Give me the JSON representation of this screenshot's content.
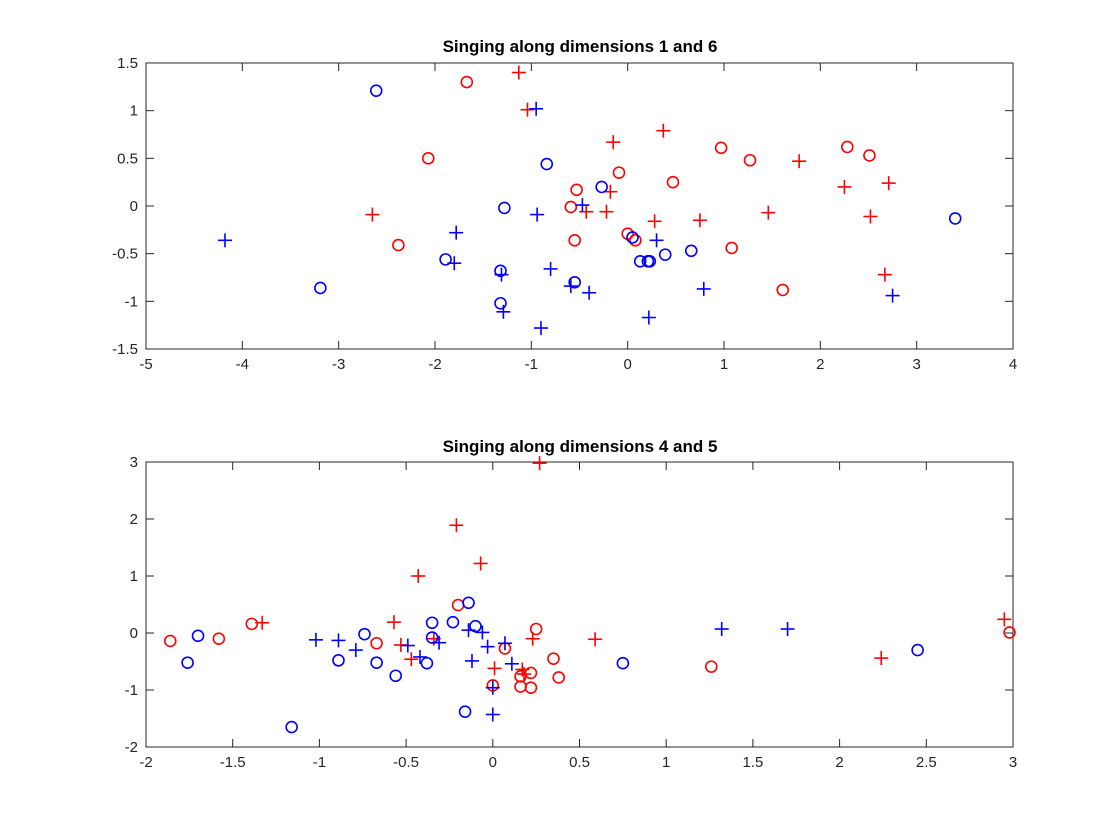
{
  "colors": {
    "series_a": "#ff0000",
    "series_b": "#0000ff",
    "axis": "#262626"
  },
  "chart_data": [
    {
      "type": "scatter",
      "title": "Singing along dimensions 1 and 6",
      "xlabel": "",
      "ylabel": "",
      "xlim": [
        -5,
        4
      ],
      "ylim": [
        -1.5,
        1.5
      ],
      "xticks": [
        -5,
        -4,
        -3,
        -2,
        -1,
        0,
        1,
        2,
        3,
        4
      ],
      "yticks": [
        -1.5,
        -1,
        -0.5,
        0,
        0.5,
        1,
        1.5
      ],
      "xtick_labels": [
        "-5",
        "-4",
        "-3",
        "-2",
        "-1",
        "0",
        "1",
        "2",
        "3",
        "4"
      ],
      "ytick_labels": [
        "-1.5",
        "-1",
        "-0.5",
        "0",
        "0.5",
        "1",
        "1.5"
      ],
      "grid": false,
      "series": [
        {
          "color": "#ff0000",
          "marker": "o",
          "points": [
            [
              -1.67,
              1.3
            ],
            [
              -2.07,
              0.5
            ],
            [
              -2.38,
              -0.41
            ],
            [
              -0.53,
              0.17
            ],
            [
              -0.09,
              0.35
            ],
            [
              -0.59,
              -0.01
            ],
            [
              -0.55,
              -0.36
            ],
            [
              0.0,
              -0.29
            ],
            [
              0.08,
              -0.36
            ],
            [
              0.47,
              0.25
            ],
            [
              0.97,
              0.61
            ],
            [
              1.27,
              0.48
            ],
            [
              2.28,
              0.62
            ],
            [
              2.51,
              0.53
            ],
            [
              1.08,
              -0.44
            ],
            [
              1.61,
              -0.88
            ]
          ]
        },
        {
          "color": "#ff0000",
          "marker": "+",
          "points": [
            [
              -1.13,
              1.4
            ],
            [
              -1.04,
              1.01
            ],
            [
              -0.15,
              0.67
            ],
            [
              0.37,
              0.79
            ],
            [
              -0.18,
              0.15
            ],
            [
              -0.43,
              -0.06
            ],
            [
              -0.22,
              -0.06
            ],
            [
              0.28,
              -0.16
            ],
            [
              0.75,
              -0.15
            ],
            [
              1.46,
              -0.07
            ],
            [
              1.78,
              0.47
            ],
            [
              2.25,
              0.2
            ],
            [
              2.71,
              0.24
            ],
            [
              2.52,
              -0.11
            ],
            [
              2.67,
              -0.72
            ],
            [
              -2.65,
              -0.09
            ]
          ]
        },
        {
          "color": "#0000ff",
          "marker": "o",
          "points": [
            [
              -2.61,
              1.21
            ],
            [
              -3.19,
              -0.86
            ],
            [
              -1.89,
              -0.56
            ],
            [
              -1.28,
              -0.02
            ],
            [
              -0.84,
              0.44
            ],
            [
              -1.32,
              -0.68
            ],
            [
              -1.32,
              -1.02
            ],
            [
              -0.55,
              -0.8
            ],
            [
              -0.27,
              0.2
            ],
            [
              0.05,
              -0.33
            ],
            [
              0.13,
              -0.58
            ],
            [
              0.23,
              -0.58
            ],
            [
              0.21,
              -0.58
            ],
            [
              0.39,
              -0.51
            ],
            [
              0.66,
              -0.47
            ],
            [
              3.4,
              -0.13
            ]
          ]
        },
        {
          "color": "#0000ff",
          "marker": "+",
          "points": [
            [
              -4.18,
              -0.36
            ],
            [
              -1.78,
              -0.28
            ],
            [
              -1.8,
              -0.6
            ],
            [
              -1.31,
              -0.72
            ],
            [
              -1.29,
              -1.11
            ],
            [
              -0.95,
              1.02
            ],
            [
              -0.94,
              -0.09
            ],
            [
              -0.8,
              -0.66
            ],
            [
              -0.9,
              -1.28
            ],
            [
              -0.59,
              -0.84
            ],
            [
              -0.4,
              -0.91
            ],
            [
              -0.47,
              0.01
            ],
            [
              0.3,
              -0.36
            ],
            [
              0.22,
              -1.17
            ],
            [
              0.79,
              -0.87
            ],
            [
              2.75,
              -0.94
            ]
          ]
        }
      ]
    },
    {
      "type": "scatter",
      "title": "Singing along dimensions 4 and 5",
      "xlabel": "",
      "ylabel": "",
      "xlim": [
        -2,
        3
      ],
      "ylim": [
        -2,
        3
      ],
      "xticks": [
        -2,
        -1.5,
        -1,
        -0.5,
        0,
        0.5,
        1,
        1.5,
        2,
        2.5,
        3
      ],
      "yticks": [
        -2,
        -1,
        0,
        1,
        2,
        3
      ],
      "xtick_labels": [
        "-2",
        "-1.5",
        "-1",
        "-0.5",
        "0",
        "0.5",
        "1",
        "1.5",
        "2",
        "2.5",
        "3"
      ],
      "ytick_labels": [
        "-2",
        "-1",
        "0",
        "1",
        "2",
        "3"
      ],
      "grid": false,
      "series": [
        {
          "color": "#ff0000",
          "marker": "o",
          "points": [
            [
              -1.86,
              -0.14
            ],
            [
              -1.58,
              -0.1
            ],
            [
              -1.39,
              0.16
            ],
            [
              -0.67,
              -0.18
            ],
            [
              -0.2,
              0.49
            ],
            [
              0.07,
              -0.27
            ],
            [
              0.25,
              0.07
            ],
            [
              0.35,
              -0.45
            ],
            [
              0.38,
              -0.78
            ],
            [
              0.22,
              -0.96
            ],
            [
              0.22,
              -0.7
            ],
            [
              0.16,
              -0.94
            ],
            [
              0.0,
              -0.92
            ],
            [
              1.26,
              -0.59
            ],
            [
              2.98,
              0.01
            ],
            [
              0.16,
              -0.76
            ]
          ]
        },
        {
          "color": "#ff0000",
          "marker": "+",
          "points": [
            [
              -1.33,
              0.18
            ],
            [
              -0.57,
              0.19
            ],
            [
              -0.53,
              -0.21
            ],
            [
              -0.47,
              -0.46
            ],
            [
              -0.43,
              1.0
            ],
            [
              -0.21,
              1.89
            ],
            [
              -0.07,
              1.22
            ],
            [
              0.27,
              2.98
            ],
            [
              0.23,
              -0.1
            ],
            [
              0.59,
              -0.11
            ],
            [
              0.01,
              -0.62
            ],
            [
              0.17,
              -0.64
            ],
            [
              2.24,
              -0.44
            ],
            [
              2.95,
              0.24
            ],
            [
              -0.34,
              -0.1
            ],
            [
              0.18,
              -0.72
            ]
          ]
        },
        {
          "color": "#0000ff",
          "marker": "o",
          "points": [
            [
              -1.76,
              -0.52
            ],
            [
              -1.7,
              -0.05
            ],
            [
              -1.16,
              -1.65
            ],
            [
              -0.89,
              -0.48
            ],
            [
              -0.74,
              -0.02
            ],
            [
              -0.67,
              -0.52
            ],
            [
              -0.56,
              -0.75
            ],
            [
              -0.38,
              -0.53
            ],
            [
              -0.35,
              0.18
            ],
            [
              -0.35,
              -0.08
            ],
            [
              -0.23,
              0.19
            ],
            [
              -0.14,
              0.53
            ],
            [
              -0.1,
              0.12
            ],
            [
              -0.16,
              -1.38
            ],
            [
              0.75,
              -0.53
            ],
            [
              2.45,
              -0.3
            ]
          ]
        },
        {
          "color": "#0000ff",
          "marker": "+",
          "points": [
            [
              -1.02,
              -0.12
            ],
            [
              -0.89,
              -0.13
            ],
            [
              -0.79,
              -0.3
            ],
            [
              -0.49,
              -0.22
            ],
            [
              -0.42,
              -0.42
            ],
            [
              -0.31,
              -0.17
            ],
            [
              -0.14,
              0.05
            ],
            [
              -0.12,
              -0.49
            ],
            [
              -0.06,
              0.01
            ],
            [
              -0.03,
              -0.24
            ],
            [
              0.07,
              -0.18
            ],
            [
              0.11,
              -0.54
            ],
            [
              0.0,
              -0.96
            ],
            [
              0.0,
              -1.43
            ],
            [
              1.32,
              0.07
            ],
            [
              1.7,
              0.07
            ]
          ]
        }
      ]
    }
  ]
}
